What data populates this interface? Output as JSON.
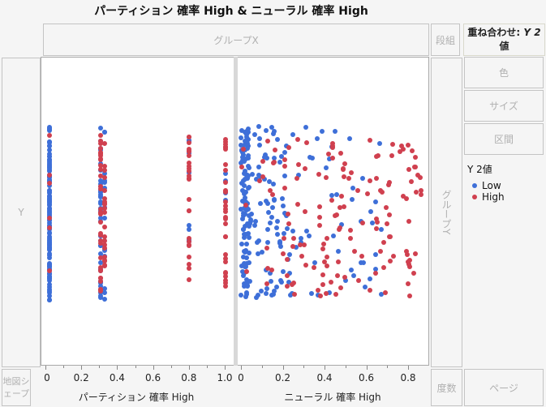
{
  "title": "パーティション 確率 High & ニューラル 確率 High",
  "zones": {
    "group_x": "グループX",
    "wrap": "段組",
    "overlay_label": "重ね合わせ:",
    "overlay_value": "Y 2",
    "overlay_line2": "値",
    "y": "Y",
    "group_y": "グループY",
    "color": "色",
    "size": "サイズ",
    "interval": "区間",
    "map_shape": "地図シェープ",
    "freq": "度数",
    "page": "ページ"
  },
  "legend": {
    "title": "Y 2値",
    "items": [
      {
        "label": "Low",
        "color": "#3e6fd8"
      },
      {
        "label": "High",
        "color": "#d0404f"
      }
    ]
  },
  "chart_data": {
    "type": "scatter",
    "title": "パーティション 確率 High & ニューラル 確率 High",
    "overlay": "Y 2値",
    "legend": [
      "Low",
      "High"
    ],
    "colors": {
      "Low": "#3e6fd8",
      "High": "#d0404f"
    },
    "panels": [
      {
        "xlabel": "パーティション 確率 High",
        "xlim": [
          0,
          1.0
        ],
        "ticks": [
          "0",
          "0.2",
          "0.4",
          "0.6",
          "0.8",
          "1.0"
        ],
        "tick_values": [
          0,
          0.2,
          0.4,
          0.6,
          0.8,
          1.0
        ],
        "description": "Jittered strip plot at discrete x values",
        "clusters": [
          {
            "x": 0.02,
            "low_count": 120,
            "high_count": 6
          },
          {
            "x": 0.3,
            "low_count": 60,
            "high_count": 55
          },
          {
            "x": 0.79,
            "low_count": 8,
            "high_count": 25
          },
          {
            "x": 0.99,
            "low_count": 4,
            "high_count": 30
          }
        ]
      },
      {
        "xlabel": "ニューラル 確率 High",
        "xlim": [
          0,
          0.9
        ],
        "ticks": [
          "0",
          "0.2",
          "0.4",
          "0.6",
          "0.8"
        ],
        "tick_values": [
          0,
          0.2,
          0.4,
          0.6,
          0.8
        ],
        "description": "Low points concentrated near x=0-0.2, High points spread x=0.2-0.88",
        "low_count": 230,
        "high_count": 150
      }
    ],
    "ylabel": "Y (jittered, no scale)"
  }
}
